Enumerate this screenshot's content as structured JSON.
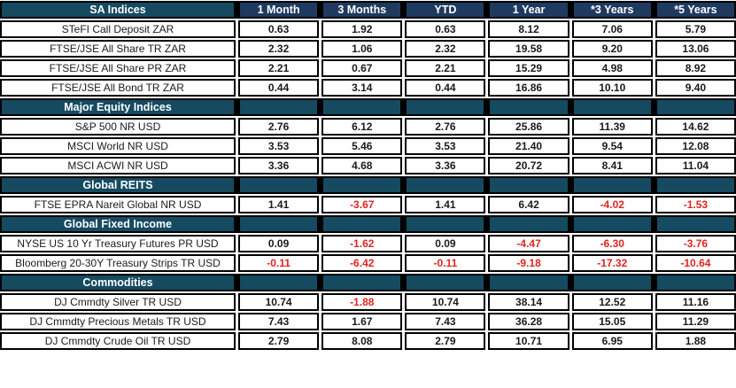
{
  "colors": {
    "section_teal": "#154A61",
    "header_navy": "#1F3A5F",
    "negative_red": "#E2231E",
    "value_ink": "#1A1A1A",
    "border_black": "#000000"
  },
  "chart_data": {
    "type": "table",
    "header": {
      "label": "SA Indices",
      "periods": [
        "1 Month",
        "3 Months",
        "YTD",
        "1 Year",
        "*3 Years",
        "*5 Years"
      ]
    },
    "sections": [
      {
        "title": "",
        "rows": [
          {
            "name": "STeFI Call Deposit ZAR",
            "values": [
              "0.63",
              "1.92",
              "0.63",
              "8.12",
              "7.06",
              "5.79"
            ]
          },
          {
            "name": "FTSE/JSE All Share TR ZAR",
            "values": [
              "2.32",
              "1.06",
              "2.32",
              "19.58",
              "9.20",
              "13.06"
            ]
          },
          {
            "name": "FTSE/JSE All Share PR ZAR",
            "values": [
              "2.21",
              "0.67",
              "2.21",
              "15.29",
              "4.98",
              "8.92"
            ]
          },
          {
            "name": "FTSE/JSE All Bond TR ZAR",
            "values": [
              "0.44",
              "3.14",
              "0.44",
              "16.86",
              "10.10",
              "9.40"
            ]
          }
        ]
      },
      {
        "title": "Major Equity Indices",
        "rows": [
          {
            "name": "S&P 500 NR USD",
            "values": [
              "2.76",
              "6.12",
              "2.76",
              "25.86",
              "11.39",
              "14.62"
            ]
          },
          {
            "name": "MSCI World NR USD",
            "values": [
              "3.53",
              "5.46",
              "3.53",
              "21.40",
              "9.54",
              "12.08"
            ]
          },
          {
            "name": "MSCI ACWI NR USD",
            "values": [
              "3.36",
              "4.68",
              "3.36",
              "20.72",
              "8.41",
              "11.04"
            ]
          }
        ]
      },
      {
        "title": "Global REITS",
        "rows": [
          {
            "name": "FTSE EPRA Nareit Global NR USD",
            "values": [
              "1.41",
              "-3.67",
              "1.41",
              "6.42",
              "-4.02",
              "-1.53"
            ]
          }
        ]
      },
      {
        "title": "Global Fixed Income",
        "rows": [
          {
            "name": "NYSE US 10 Yr Treasury Futures PR USD",
            "values": [
              "0.09",
              "-1.62",
              "0.09",
              "-4.47",
              "-6.30",
              "-3.76"
            ]
          },
          {
            "name": "Bloomberg 20-30Y Treasury Strips TR USD",
            "values": [
              "-0.11",
              "-6.42",
              "-0.11",
              "-9.18",
              "-17.32",
              "-10.64"
            ]
          }
        ]
      },
      {
        "title": "Commodities",
        "rows": [
          {
            "name": "DJ Cmmdty Silver TR USD",
            "values": [
              "10.74",
              "-1.88",
              "10.74",
              "38.14",
              "12.52",
              "11.16"
            ]
          },
          {
            "name": "DJ Cmmdty Precious Metals TR USD",
            "values": [
              "7.43",
              "1.67",
              "7.43",
              "36.28",
              "15.05",
              "11.29"
            ]
          },
          {
            "name": "DJ Cmmdty Crude Oil TR USD",
            "values": [
              "2.79",
              "8.08",
              "2.79",
              "10.71",
              "6.95",
              "1.88"
            ]
          }
        ]
      }
    ]
  }
}
